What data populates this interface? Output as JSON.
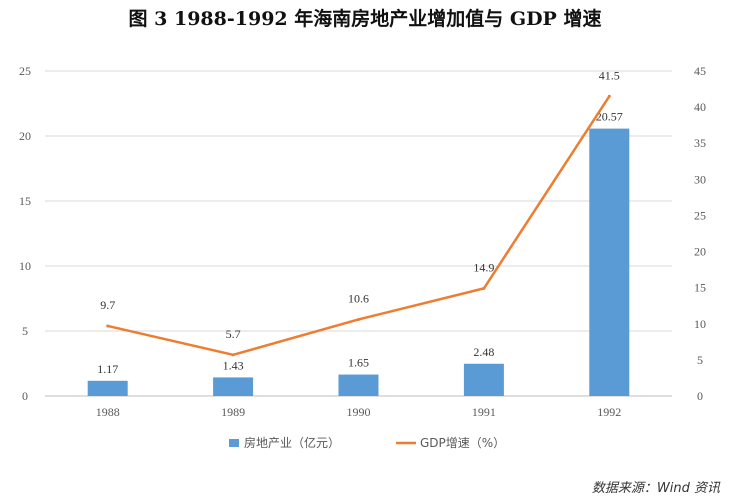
{
  "title": "图 3    1988-1992 年海南房地产业增加值与 GDP 增速",
  "source": "数据来源：Wind 资讯",
  "chart_data": {
    "type": "bar",
    "categories": [
      "1988",
      "1989",
      "1990",
      "1991",
      "1992"
    ],
    "series": [
      {
        "name": "房地产业（亿元）",
        "type": "bar",
        "axis": "left",
        "values": [
          1.17,
          1.43,
          1.65,
          2.48,
          20.57
        ],
        "color": "#5b9bd5"
      },
      {
        "name": "GDP增速（%）",
        "type": "line",
        "axis": "right",
        "values": [
          9.7,
          5.7,
          10.6,
          14.9,
          41.5
        ],
        "color": "#ed7d31"
      }
    ],
    "y_left": {
      "min": 0,
      "max": 25,
      "ticks": [
        "0",
        "5",
        "10",
        "15",
        "20",
        "25"
      ]
    },
    "y_right": {
      "min": 0,
      "max": 45,
      "ticks": [
        "0",
        "5",
        "10",
        "15",
        "20",
        "25",
        "30",
        "35",
        "40",
        "45"
      ]
    },
    "grid": true,
    "legend_position": "bottom"
  }
}
